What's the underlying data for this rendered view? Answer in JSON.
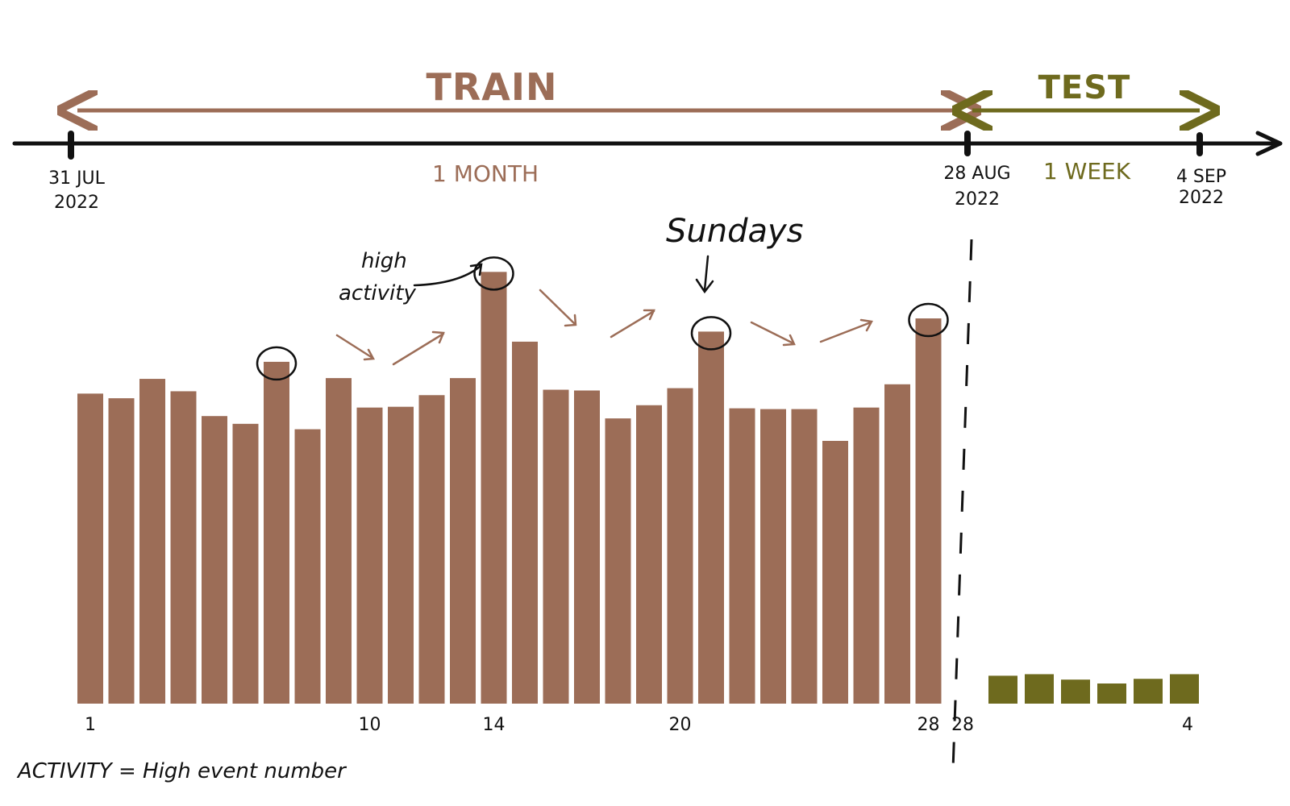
{
  "title": "",
  "timeline": {
    "train_label": "TRAIN",
    "test_label": "TEST",
    "train_duration": "1 MONTH",
    "test_duration": "1 WEEK",
    "start_date": {
      "day": "31 JUL",
      "year": "2022"
    },
    "split_date": {
      "day": "28 AUG",
      "year": "2022"
    },
    "end_date": {
      "day": "4 SEP",
      "year": "2022"
    }
  },
  "annotations": {
    "high_activity_line1": "high",
    "high_activity_line2": "activity",
    "sundays": "Sundays",
    "footnote": "ACTIVITY = High event number"
  },
  "colors": {
    "train": "#9c6d57",
    "test": "#6e6a1e",
    "axis": "#111111"
  },
  "chart_data": [
    {
      "type": "bar",
      "name": "train",
      "x": [
        1,
        2,
        3,
        4,
        5,
        6,
        7,
        8,
        9,
        10,
        11,
        12,
        13,
        14,
        15,
        16,
        17,
        18,
        19,
        20,
        21,
        22,
        23,
        24,
        25,
        26,
        27,
        28
      ],
      "values": [
        400,
        394,
        419,
        403,
        371,
        361,
        441,
        354,
        420,
        382,
        383,
        398,
        420,
        557,
        467,
        405,
        404,
        368,
        385,
        407,
        480,
        381,
        380,
        380,
        339,
        382,
        412,
        497
      ],
      "highlighted_x": [
        7,
        14,
        21,
        28
      ],
      "xtick_labels": [
        "1",
        "10",
        "14",
        "20",
        "28"
      ],
      "xtick_positions": [
        1,
        10,
        14,
        20,
        28
      ],
      "ylim": [
        0,
        600
      ],
      "yaxis_visible": false
    },
    {
      "type": "bar",
      "name": "test",
      "x": [
        1,
        2,
        3,
        4,
        5,
        6
      ],
      "values": [
        36,
        38,
        31,
        26,
        32,
        38
      ],
      "xtick_labels": [
        "28",
        "4"
      ],
      "xtick_positions": [
        0,
        6
      ],
      "ylim": [
        0,
        600
      ],
      "yaxis_visible": false
    }
  ]
}
